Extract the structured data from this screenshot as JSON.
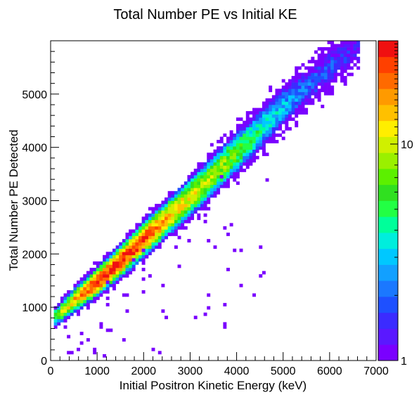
{
  "chart_data": {
    "type": "heatmap",
    "title": "Total Number PE vs Initial KE",
    "xlabel": "Initial Positron Kinetic Energy (keV)",
    "ylabel": "Total Number PE Detected",
    "xlim": [
      0,
      7000
    ],
    "ylim": [
      0,
      6000
    ],
    "x_ticks": [
      0,
      1000,
      2000,
      3000,
      4000,
      5000,
      6000,
      7000
    ],
    "y_ticks": [
      0,
      1000,
      2000,
      3000,
      4000,
      5000
    ],
    "x_bins": 100,
    "y_bins": 100,
    "z_scale": "log",
    "zlim": [
      1,
      30
    ],
    "z_ticks": [
      1,
      10
    ],
    "colorscale": [
      "#7a00ff",
      "#5a18ff",
      "#3b2bff",
      "#1e50ff",
      "#1b78ff",
      "#12a0ff",
      "#00c8ff",
      "#00eedd",
      "#00ff9a",
      "#22ff44",
      "#30e020",
      "#5cf000",
      "#9af000",
      "#d0f000",
      "#ffee00",
      "#ffc000",
      "#ff9a00",
      "#ff6a00",
      "#ff4000",
      "#f01010"
    ],
    "ridge": [
      [
        70,
        800
      ],
      [
        500,
        1120
      ],
      [
        1000,
        1480
      ],
      [
        1500,
        1860
      ],
      [
        2000,
        2270
      ],
      [
        2500,
        2660
      ],
      [
        3000,
        3060
      ],
      [
        3500,
        3480
      ],
      [
        4000,
        3900
      ],
      [
        4500,
        4320
      ],
      [
        5000,
        4760
      ],
      [
        5500,
        5120
      ],
      [
        6000,
        5500
      ],
      [
        6500,
        5850
      ]
    ],
    "counts_along_ridge": [
      [
        70,
        6
      ],
      [
        500,
        14
      ],
      [
        1000,
        26
      ],
      [
        1500,
        26
      ],
      [
        2000,
        24
      ],
      [
        2500,
        15
      ],
      [
        3000,
        11
      ],
      [
        3500,
        9
      ],
      [
        4000,
        7
      ],
      [
        4500,
        4
      ],
      [
        5000,
        3
      ],
      [
        5500,
        2
      ],
      [
        6000,
        1.8
      ],
      [
        6500,
        1.3
      ]
    ],
    "grid": false,
    "legend": "none",
    "colorbar": "right"
  }
}
